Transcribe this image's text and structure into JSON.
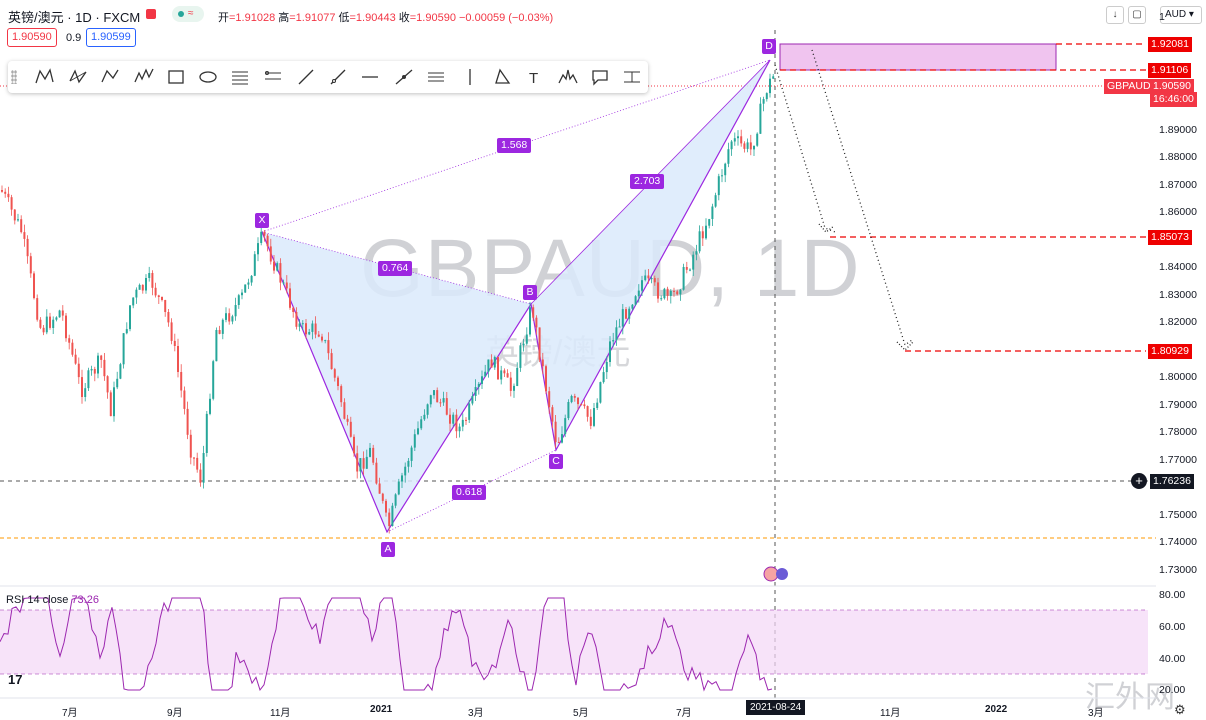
{
  "header": {
    "symbol_title": "英镑/澳元 · 1D · FXCM",
    "ohlc_open_label": "开",
    "ohlc_open": "=1.91028",
    "ohlc_high_label": "高",
    "ohlc_high": "=1.91077",
    "ohlc_low_label": "低",
    "ohlc_low": "=1.90443",
    "ohlc_close_label": "收",
    "ohlc_close": "=1.90590",
    "ohlc_change": "−0.00059 (−0.03%)",
    "bid": "1.90590",
    "spread": "0.9",
    "ask": "1.90599"
  },
  "toolbar": {
    "tools": [
      "xabcd-pattern-icon",
      "cypher-pattern-icon",
      "abcd-pattern-icon",
      "three-drives-icon",
      "rectangle-icon",
      "ellipse-icon",
      "fib-retracement-icon",
      "fib-extension-icon",
      "trend-line-icon",
      "ray-icon",
      "horizontal-line-icon",
      "extended-line-icon",
      "parallel-channel-icon",
      "vertical-line-icon",
      "triangle-icon",
      "text-icon",
      "head-shoulders-icon",
      "callout-icon",
      "price-range-icon"
    ]
  },
  "watermark": {
    "symbol": "GBPAUD, 1D",
    "name": "英镑/澳元",
    "site": "汇外网"
  },
  "pattern": {
    "points": [
      "X",
      "A",
      "B",
      "C",
      "D"
    ],
    "ratios": [
      "1.568",
      "0.764",
      "2.703",
      "0.618"
    ]
  },
  "price_axis": {
    "currency": "AUD",
    "ticks": [
      "1",
      "1.89000",
      "1.88000",
      "1.87000",
      "1.86000",
      "1.84000",
      "1.83000",
      "1.82000",
      "1.80000",
      "1.79000",
      "1.78000",
      "1.77000",
      "1.75000",
      "1.74000",
      "1.73000"
    ],
    "level_tags": [
      "1.92081",
      "1.91106",
      "1.85073",
      "1.80929"
    ],
    "last_symbol": "GBPAUD",
    "last_price": "1.90590",
    "countdown": "16:46:00",
    "crosshair_price": "1.76236"
  },
  "rsi": {
    "label": "RSI 14 close",
    "value": "73.26",
    "ticks": [
      "80.00",
      "60.00",
      "40.00",
      "20.00"
    ],
    "band_color": "#f3d7f7",
    "line_color": "#9c27b0"
  },
  "time_axis": {
    "ticks": [
      "7月",
      "9月",
      "11月",
      "2021",
      "3月",
      "5月",
      "7月",
      "11月",
      "2022",
      "3月"
    ],
    "crosshair_date": "2021-08-24"
  },
  "colors": {
    "up": "#26a69a",
    "down": "#ef5350",
    "pattern": "#9c27e0",
    "pattern_fill": "#dbeafb",
    "level_line": "#e00000"
  }
}
